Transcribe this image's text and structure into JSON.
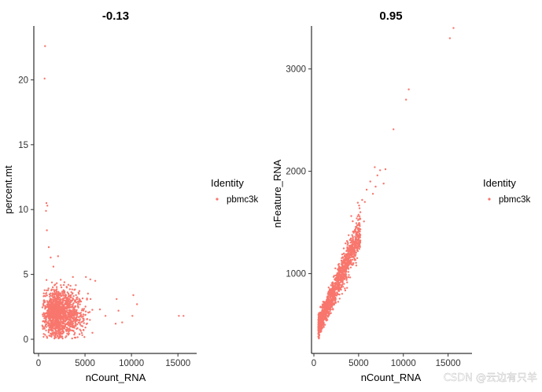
{
  "chart_data": [
    {
      "type": "scatter",
      "title": "-0.13",
      "xlabel": "nCount_RNA",
      "ylabel": "percent.mt",
      "xlim": [
        0,
        16000
      ],
      "ylim": [
        0,
        23
      ],
      "xticks": [
        0,
        5000,
        10000,
        15000
      ],
      "yticks": [
        0,
        5,
        10,
        15,
        20
      ],
      "xtick_labels": [
        "0",
        "5000",
        "10000",
        "15000"
      ],
      "ytick_labels": [
        "0",
        "5",
        "10",
        "15",
        "20"
      ],
      "color": "#F8766D",
      "legend": {
        "title": "Identity",
        "entries": [
          "pbmc3k"
        ]
      },
      "points": [
        [
          700,
          22.6
        ],
        [
          650,
          20.1
        ],
        [
          850,
          10.5
        ],
        [
          950,
          10.3
        ],
        [
          800,
          9.9
        ],
        [
          15100,
          1.8
        ],
        [
          15600,
          1.8
        ],
        [
          10200,
          3.4
        ],
        [
          10600,
          2.7
        ],
        [
          10100,
          1.8
        ],
        [
          8600,
          2.2
        ],
        [
          9000,
          1.3
        ],
        [
          7200,
          1.8
        ],
        [
          6600,
          2.3
        ],
        [
          6100,
          4.5
        ],
        [
          5100,
          4.8
        ],
        [
          3700,
          4.8
        ],
        [
          1300,
          6.3
        ],
        [
          1600,
          5.6
        ],
        [
          2100,
          6.4
        ],
        [
          1100,
          7.1
        ],
        [
          900,
          8.4
        ],
        [
          4300,
          3.6
        ],
        [
          5600,
          3.1
        ],
        [
          8300,
          1.2
        ],
        [
          1400,
          0.2
        ],
        [
          2600,
          0.6
        ],
        [
          4100,
          0.8
        ],
        [
          5800,
          0.5
        ],
        [
          8400,
          3.1
        ]
      ],
      "cluster": {
        "x_center": 2200,
        "x_spread": 900,
        "y_center": 2.0,
        "y_spread": 0.9,
        "count": 1300
      }
    },
    {
      "type": "scatter",
      "title": "0.95",
      "xlabel": "nCount_RNA",
      "ylabel": "nFeature_RNA",
      "xlim": [
        0,
        16000
      ],
      "ylim": [
        220,
        3420
      ],
      "xticks": [
        0,
        5000,
        10000,
        15000
      ],
      "yticks": [
        1000,
        2000,
        3000
      ],
      "xtick_labels": [
        "0",
        "5000",
        "10000",
        "15000"
      ],
      "ytick_labels": [
        "1000",
        "2000",
        "3000"
      ],
      "color": "#F8766D",
      "legend": {
        "title": "Identity",
        "entries": [
          "pbmc3k"
        ]
      },
      "points": [
        [
          15600,
          3400
        ],
        [
          15200,
          3300
        ],
        [
          10600,
          2800
        ],
        [
          10300,
          2700
        ],
        [
          8900,
          2410
        ],
        [
          8000,
          2020
        ],
        [
          7400,
          2010
        ],
        [
          6800,
          2040
        ],
        [
          7100,
          1960
        ],
        [
          6300,
          1900
        ],
        [
          5900,
          1820
        ],
        [
          5700,
          1700
        ],
        [
          5400,
          1720
        ],
        [
          5200,
          1600
        ],
        [
          4900,
          1560
        ],
        [
          6600,
          1780
        ],
        [
          7800,
          1880
        ],
        [
          4800,
          1450
        ],
        [
          5600,
          1510
        ],
        [
          6900,
          1850
        ]
      ],
      "cluster": {
        "x_min": 500,
        "x_max": 5200,
        "y_a": 380,
        "y_b": 0.2,
        "y_spread": 70,
        "count": 1300
      }
    }
  ],
  "watermark": "CSDN @云边有只羊"
}
